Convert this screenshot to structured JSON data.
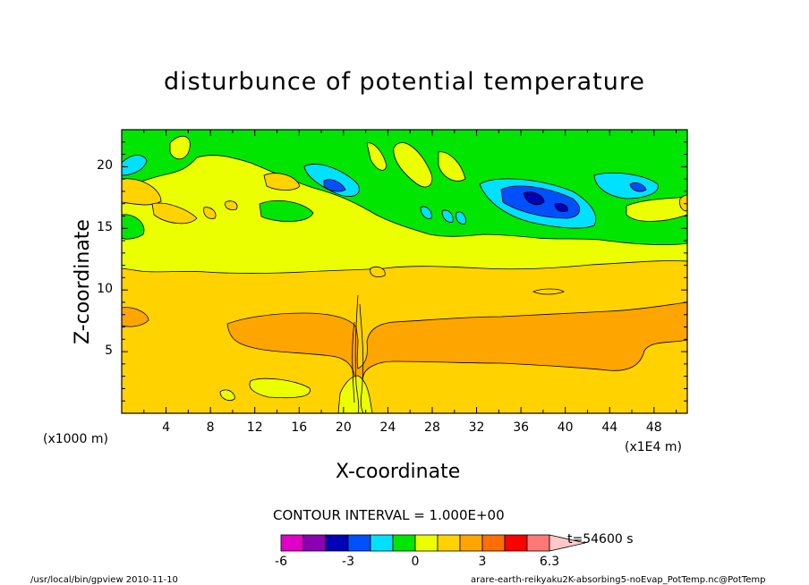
{
  "chart_data": {
    "type": "heatmap",
    "title": "disturbunce of potential temperature",
    "xlabel": "X-coordinate",
    "ylabel": "Z-coordinate",
    "x_unit_left": "(x1000 m)",
    "x_unit_right": "(x1E4 m)",
    "x_ticks": [
      "4",
      "8",
      "12",
      "16",
      "20",
      "24",
      "28",
      "32",
      "36",
      "40",
      "44",
      "48"
    ],
    "y_ticks": [
      "5",
      "10",
      "15",
      "20"
    ],
    "xlim": [
      0,
      51
    ],
    "ylim": [
      0,
      23
    ],
    "contour_interval": "CONTOUR INTERVAL = 1.000E+00",
    "colorbar": {
      "labels": [
        "-6",
        "-3",
        "0",
        "3",
        "6.3"
      ],
      "colors": [
        "#e100c8",
        "#8c00b4",
        "#0000b4",
        "#0050ff",
        "#00e1ff",
        "#00e600",
        "#ebff00",
        "#ffd200",
        "#ffa500",
        "#ff6e00",
        "#ff0000",
        "#ff7878",
        "#ffc8c8"
      ]
    },
    "time_label": "t=54600 s",
    "footer_left": "/usr/local/bin/gpview  2010-11-10",
    "footer_right": "arare-earth-reikyaku2K-absorbing5-noEvap_PotTemp.nc@PotTemp"
  }
}
